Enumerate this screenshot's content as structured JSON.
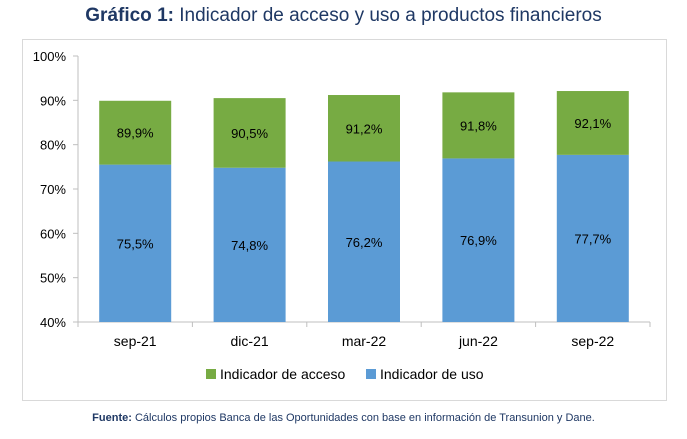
{
  "header": {
    "title_prefix": "Gráfico 1:",
    "title_text": "Indicador de acceso y uso a productos financieros"
  },
  "footnote": {
    "label": "Fuente:",
    "text": "Cálculos propios Banca de las Oportunidades con base en información de Transunion y Dane."
  },
  "chart_data": {
    "type": "bar",
    "title": "Gráfico 1: Indicador de acceso y uso a productos financieros",
    "categories": [
      "sep-21",
      "dic-21",
      "mar-22",
      "jun-22",
      "sep-22"
    ],
    "series": [
      {
        "name": "Indicador de acceso",
        "values": [
          89.9,
          90.5,
          91.2,
          91.8,
          92.1
        ],
        "labels": [
          "89,9%",
          "90,5%",
          "91,2%",
          "91,8%",
          "92,1%"
        ],
        "color": "#77ab43"
      },
      {
        "name": "Indicador de uso",
        "values": [
          75.5,
          74.8,
          76.2,
          76.9,
          77.7
        ],
        "labels": [
          "75,5%",
          "74,8%",
          "76,2%",
          "76,9%",
          "77,7%"
        ],
        "color": "#5b9bd5"
      }
    ],
    "ylim": [
      40,
      100
    ],
    "yticks": [
      40,
      50,
      60,
      70,
      80,
      90,
      100
    ],
    "ytick_labels": [
      "40%",
      "50%",
      "60%",
      "70%",
      "80%",
      "90%",
      "100%"
    ],
    "xlabel": "",
    "ylabel": "",
    "grid": false,
    "legend_position": "bottom"
  }
}
